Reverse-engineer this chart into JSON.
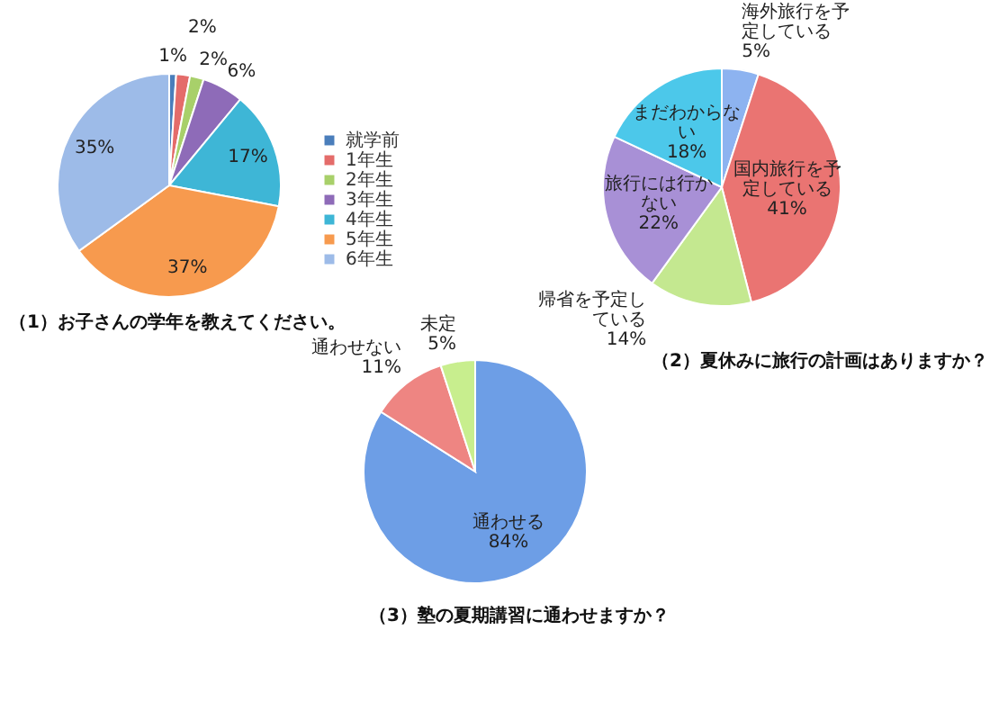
{
  "chart_data": [
    {
      "type": "pie",
      "title": "（1）お子さんの学年を教えてください。",
      "categories": [
        "就学前",
        "1年生",
        "2年生",
        "3年生",
        "4年生",
        "5年生",
        "6年生"
      ],
      "values": [
        1,
        2,
        2,
        6,
        17,
        37,
        35
      ],
      "colors": [
        "#4a7ebb",
        "#e46c6a",
        "#a8d06a",
        "#8e6bb8",
        "#3eb6d6",
        "#f79a4e",
        "#9dbbe8"
      ],
      "value_labels": [
        "1%",
        "2%",
        "2%",
        "6%",
        "17%",
        "37%",
        "35%"
      ],
      "legend": "right"
    },
    {
      "type": "pie",
      "title": "（2）夏休みに旅行の計画はありますか？",
      "categories": [
        "海外旅行を予定している",
        "国内旅行を予定している",
        "帰省を予定している",
        "旅行には行かない",
        "まだわからない"
      ],
      "values": [
        5,
        41,
        14,
        22,
        18
      ],
      "colors": [
        "#8db3f0",
        "#ea7472",
        "#c4e890",
        "#a890d6",
        "#4cc8ea"
      ],
      "value_labels": [
        "5%",
        "41%",
        "14%",
        "22%",
        "18%"
      ]
    },
    {
      "type": "pie",
      "title": "（3）塾の夏期講習に通わせますか？",
      "categories": [
        "通わせる",
        "通わせない",
        "未定"
      ],
      "values": [
        84,
        11,
        5
      ],
      "colors": [
        "#6d9ee6",
        "#ee8582",
        "#c8ee8e"
      ],
      "value_labels": [
        "84%",
        "11%",
        "5%"
      ]
    }
  ]
}
